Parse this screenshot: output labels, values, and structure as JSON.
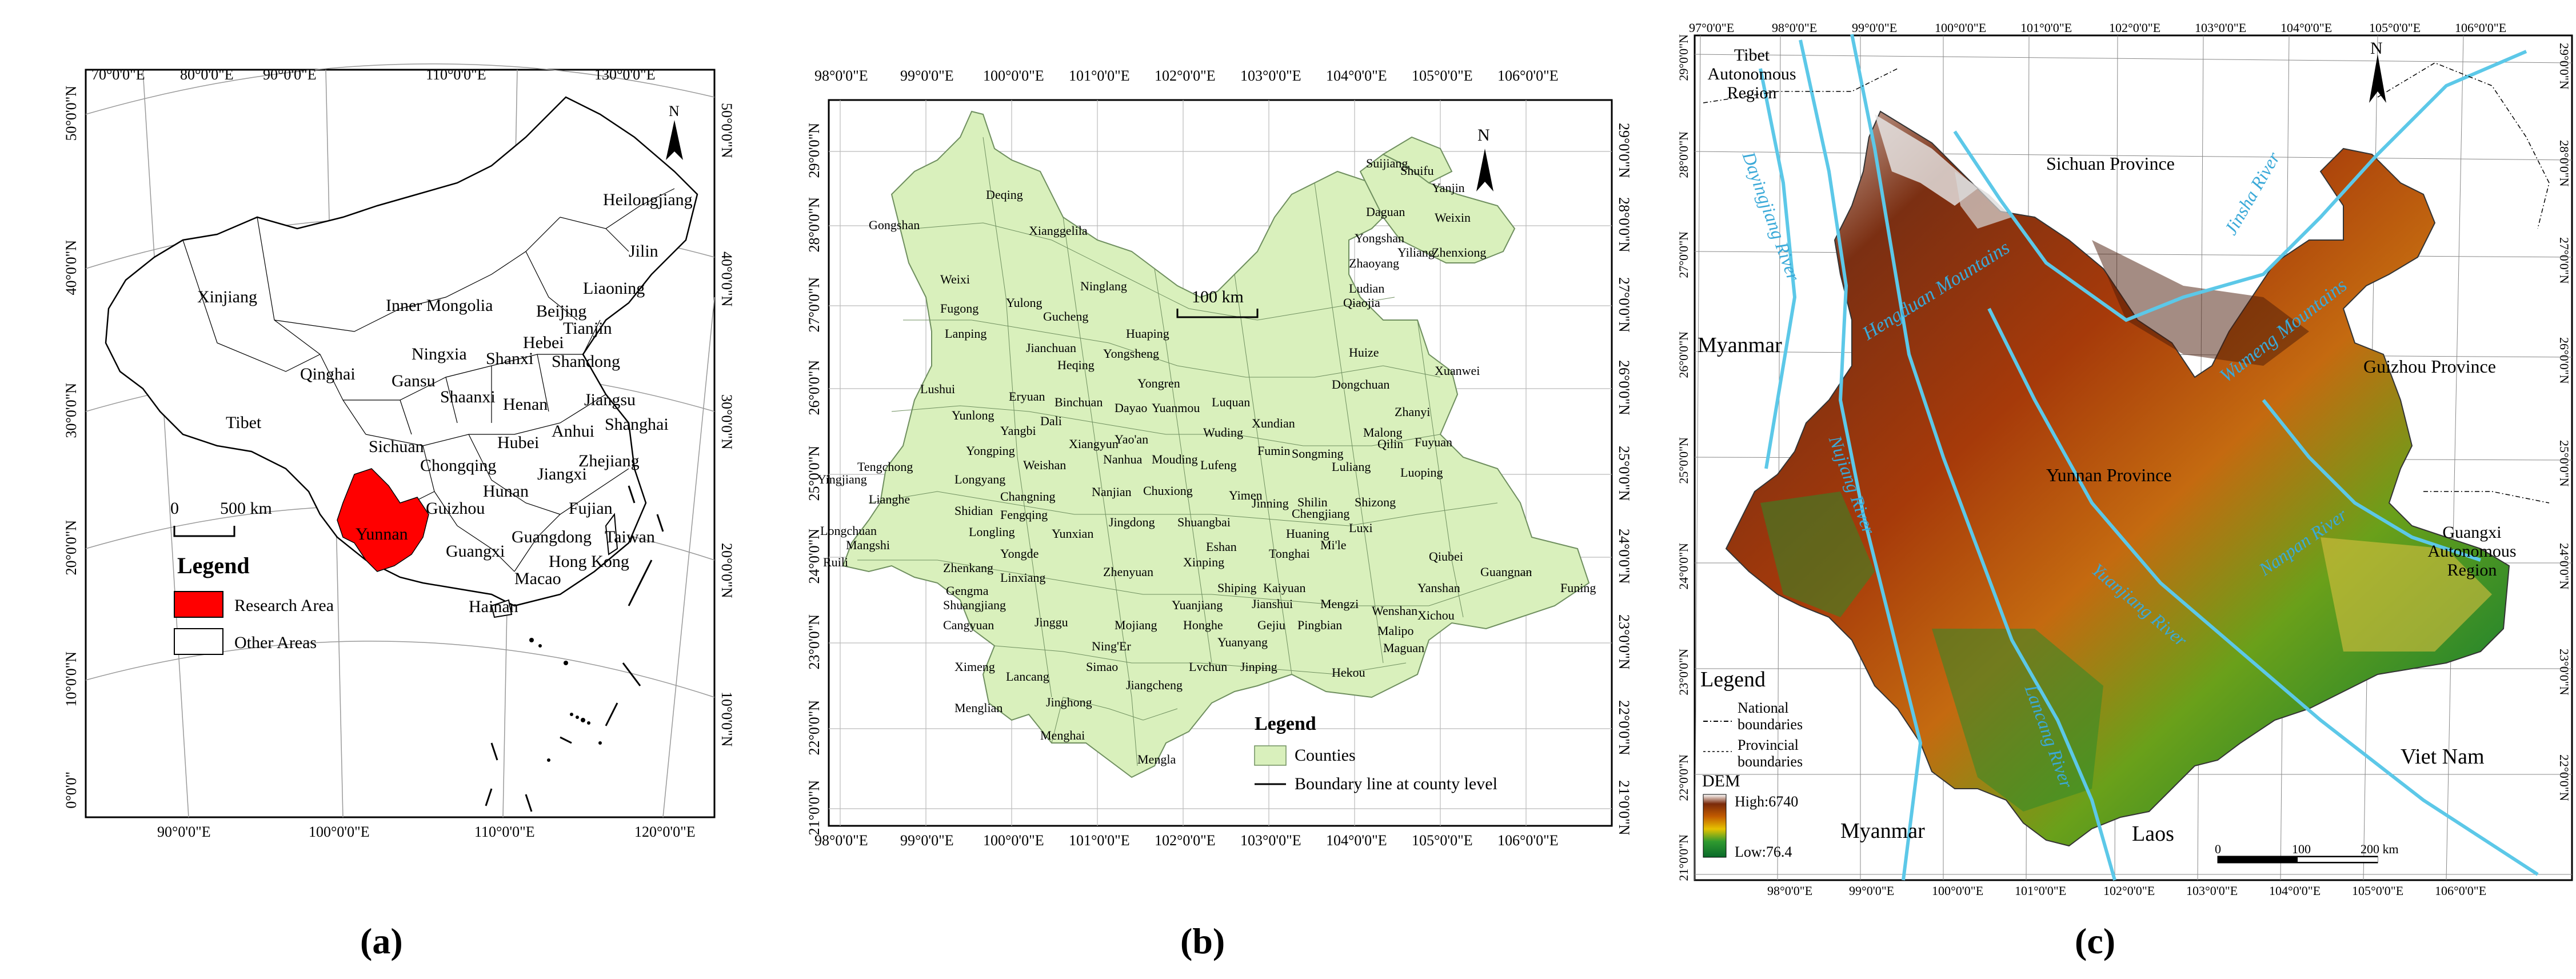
{
  "panels": {
    "a": {
      "caption": "(a)",
      "top_longitudes": [
        "70°0'0\"E",
        "80°0'0\"E",
        "90°0'0\"E",
        "110°0'0\"E",
        "130°0'0\"E"
      ],
      "bottom_longitudes": [
        "90°0'0\"E",
        "100°0'0\"E",
        "110°0'0\"E",
        "120°0'0\"E"
      ],
      "left_latitudes": [
        "50°0'0\"N",
        "40°0'0\"N",
        "30°0'0\"N",
        "20°0'0\"N",
        "10°0'0\"N",
        "0°0'0\""
      ],
      "right_latitudes": [
        "50°0'0\"N",
        "40°0'0\"N",
        "30°0'0\"N",
        "20°0'0\"N",
        "10°0'0\"N"
      ],
      "provinces": [
        "Heilongjiang",
        "Jilin",
        "Liaoning",
        "Xinjiang",
        "Inner Mongolia",
        "Beijing",
        "Tianjin",
        "Hebei",
        "Shandong",
        "Ningxia",
        "Shanxi",
        "Qinghai",
        "Gansu",
        "Shaanxi",
        "Henan",
        "Jiangsu",
        "Anhui",
        "Shanghai",
        "Tibet",
        "Sichuan",
        "Chongqing",
        "Hubei",
        "Zhejiang",
        "Jiangxi",
        "Hunan",
        "Guizhou",
        "Fujian",
        "Yunnan",
        "Guangxi",
        "Taiwan",
        "Guangdong",
        "Hong Kong",
        "Macao",
        "Hainan"
      ],
      "scale_label": "500 km",
      "scale_zero": "0",
      "north": "N",
      "legend": {
        "title": "Legend",
        "items": [
          {
            "label": "Research Area",
            "color": "#ff0000"
          },
          {
            "label": "Other Areas",
            "color": "#ffffff"
          }
        ]
      }
    },
    "b": {
      "caption": "(b)",
      "longitudes": [
        "98°0'0\"E",
        "99°0'0\"E",
        "100°0'0\"E",
        "101°0'0\"E",
        "102°0'0\"E",
        "103°0'0\"E",
        "104°0'0\"E",
        "105°0'0\"E",
        "106°0'0\"E"
      ],
      "latitudes": [
        "29°0'0\"N",
        "28°0'0\"N",
        "27°0'0\"N",
        "26°0'0\"N",
        "25°0'0\"N",
        "24°0'0\"N",
        "23°0'0\"N",
        "22°0'0\"N",
        "21°0'0\"N"
      ],
      "counties": [
        "Suijiang",
        "Shuifu",
        "Yanjin",
        "Deqing",
        "Daguan",
        "Weixin",
        "Gongshan",
        "Xianggelila",
        "Yongshan",
        "Yiliang",
        "Zhenxiong",
        "Zhaoyang",
        "Weixi",
        "Ninglang",
        "Ludian",
        "Yulong",
        "Qiaojia",
        "Fugong",
        "Gucheng",
        "Huaping",
        "Lanping",
        "Jianchuan",
        "Heqing",
        "Yongsheng",
        "Huize",
        "Yongren",
        "Dongchuan",
        "Xuanwei",
        "Lushui",
        "Eryuan",
        "Binchuan",
        "Dayao",
        "Yuanmou",
        "Luquan",
        "Zhanyi",
        "Yunlong",
        "Dali",
        "Xundian",
        "Yangbi",
        "Wuding",
        "Qilin",
        "Xiangyun",
        "Yao'an",
        "Malong",
        "Fuyuan",
        "Yongping",
        "Fumin",
        "Songming",
        "Tengchong",
        "Weishan",
        "Nanhua",
        "Mouding",
        "Lufeng",
        "Luliang",
        "Luoping",
        "Longyang",
        "Yingjiang",
        "Changning",
        "Nanjian",
        "Chuxiong",
        "Yimen",
        "Jinning",
        "Shilin",
        "Shizong",
        "Lianghe",
        "Shidian",
        "Fengqing",
        "Chengjiang",
        "Longchuan",
        "Longling",
        "Yunxian",
        "Jingdong",
        "Shuangbai",
        "Huaning",
        "Luxi",
        "Mangshi",
        "Eshan",
        "Tonghai",
        "Mi'le",
        "Yongde",
        "Xinping",
        "Qiubei",
        "Ruili",
        "Zhenkang",
        "Linxiang",
        "Zhenyuan",
        "Guangnan",
        "Funing",
        "Gengma",
        "Shiping",
        "Kaiyuan",
        "Yanshan",
        "Shuangjiang",
        "Yuanjiang",
        "Jianshui",
        "Mengzi",
        "Wenshan",
        "Xichou",
        "Cangyuan",
        "Jinggu",
        "Mojiang",
        "Honghe",
        "Gejiu",
        "Pingbian",
        "Malipo",
        "Ning'Er",
        "Yuanyang",
        "Maguan",
        "Simao",
        "Lvchun",
        "Jinping",
        "Hekou",
        "Ximeng",
        "Lancang",
        "Jiangcheng",
        "Jinghong",
        "Menglian",
        "Menghai",
        "Mengla"
      ],
      "scale_label": "100 km",
      "north": "N",
      "legend": {
        "title": "Legend",
        "items": [
          {
            "label": "Counties",
            "color": "#d9f0bc"
          },
          {
            "label": "Boundary line at county level"
          }
        ]
      }
    },
    "c": {
      "caption": "(c)",
      "longitudes": [
        "97°0'0\"E",
        "98°0'0\"E",
        "99°0'0\"E",
        "100°0'0\"E",
        "101°0'0\"E",
        "102°0'0\"E",
        "103°0'0\"E",
        "104°0'0\"E",
        "105°0'0\"E",
        "106°0'0\"E"
      ],
      "latitudes": [
        "29°0'0\"N",
        "28°0'0\"N",
        "27°0'0\"N",
        "26°0'0\"N",
        "25°0'0\"N",
        "24°0'0\"N",
        "23°0'0\"N",
        "22°0'0\"N",
        "21°0'0\"N"
      ],
      "regions": [
        "Tibet Autonomous Region",
        "Sichuan Province",
        "Myanmar",
        "Guizhou Province",
        "Yunnan Province",
        "Guangxi Autonomous Region",
        "Viet Nam",
        "Myanmar",
        "Laos"
      ],
      "mountains": [
        "Hengduan Mountains",
        "Wumeng Mountains"
      ],
      "rivers": [
        "Dayingjiang River",
        "Nujiang River",
        "Jinsha River",
        "Lancang River",
        "Nanpan River",
        "Yuanjiang River"
      ],
      "north": "N",
      "legend": {
        "title": "Legend",
        "national": "National boundaries",
        "provincial": "Provincial boundaries",
        "dem_title": "DEM",
        "high": "High:6740",
        "low": "Low:76.4"
      },
      "scale": [
        "0",
        "100",
        "200 km"
      ]
    }
  }
}
